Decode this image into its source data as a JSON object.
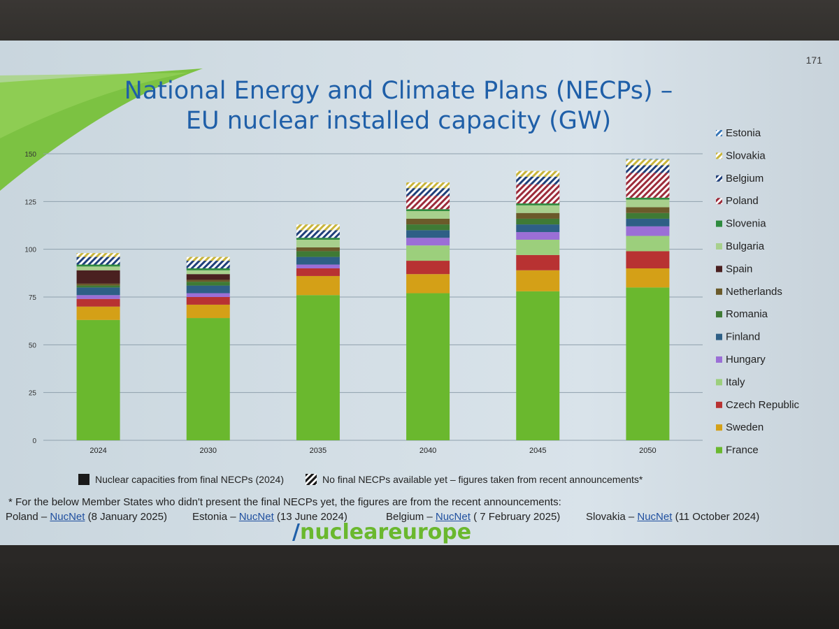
{
  "slide": {
    "number": "171",
    "title_line1": "National Energy and Climate Plans (NECPs) –",
    "title_line2": "EU nuclear installed capacity (GW)",
    "footnote": "* For the below Member States who didn't present the final NECPs yet, the figures are from the recent announcements:",
    "sources": [
      {
        "country": "Poland – ",
        "link": "NucNet",
        "date": " (8 January 2025)"
      },
      {
        "country": "Estonia – ",
        "link": "NucNet",
        "date": " (13 June 2024)"
      },
      {
        "country": "Belgium – ",
        "link": "NucNet",
        "date": " ( 7 February 2025)"
      },
      {
        "country": "Slovakia – ",
        "link": "NucNet",
        "date": " (11 October 2024)"
      }
    ],
    "logo": {
      "mark": "/",
      "text": "nucleareurope"
    }
  },
  "legend_bottom": {
    "solid": "Nuclear capacities from final NECPs (2024)",
    "hatched": "No final NECPs available yet – figures taken from recent announcements*"
  },
  "chart_data": {
    "type": "bar",
    "stacked": true,
    "title": "EU nuclear installed capacity (GW)",
    "categories": [
      "2024",
      "2030",
      "2035",
      "2040",
      "2045",
      "2050"
    ],
    "ylim": [
      0,
      150
    ],
    "yticks": [
      "0",
      "25",
      "50",
      "75",
      "100",
      "125",
      "150"
    ],
    "grid": true,
    "legend_position": "right",
    "series": [
      {
        "name": "France",
        "color": "#6ab82e",
        "hatched": false,
        "values": [
          63,
          64,
          76,
          77,
          78,
          80
        ]
      },
      {
        "name": "Sweden",
        "color": "#d4a017",
        "hatched": false,
        "values": [
          7,
          7,
          10,
          10,
          11,
          10
        ]
      },
      {
        "name": "Czech Republic",
        "color": "#b83232",
        "hatched": false,
        "values": [
          4,
          4,
          4,
          7,
          8,
          9
        ]
      },
      {
        "name": "Italy",
        "color": "#9ccf7c",
        "hatched": false,
        "values": [
          0,
          0,
          0,
          8,
          8,
          8
        ]
      },
      {
        "name": "Hungary",
        "color": "#9b6fd6",
        "hatched": false,
        "values": [
          2,
          2,
          2,
          4,
          4,
          5
        ]
      },
      {
        "name": "Finland",
        "color": "#2e5f86",
        "hatched": false,
        "values": [
          4,
          4,
          4,
          4,
          4,
          4
        ]
      },
      {
        "name": "Romania",
        "color": "#3f7a35",
        "hatched": false,
        "values": [
          1,
          2,
          3,
          3,
          3,
          3
        ]
      },
      {
        "name": "Netherlands",
        "color": "#6b5a2a",
        "hatched": false,
        "values": [
          1,
          1,
          2,
          3,
          3,
          3
        ]
      },
      {
        "name": "Spain",
        "color": "#4a2020",
        "hatched": false,
        "values": [
          7,
          3,
          0,
          0,
          0,
          0
        ]
      },
      {
        "name": "Bulgaria",
        "color": "#a8d08d",
        "hatched": false,
        "values": [
          2,
          2,
          4,
          4,
          4,
          4
        ]
      },
      {
        "name": "Slovenia",
        "color": "#2e8b3e",
        "hatched": false,
        "values": [
          1,
          1,
          1,
          1,
          1,
          1
        ]
      },
      {
        "name": "Poland",
        "color": "#9c2b3a",
        "hatched": true,
        "values": [
          0,
          0,
          0,
          7,
          10,
          13
        ]
      },
      {
        "name": "Belgium",
        "color": "#1f3f7a",
        "hatched": true,
        "values": [
          4,
          4,
          4,
          4,
          4,
          4
        ]
      },
      {
        "name": "Slovakia",
        "color": "#c9b53a",
        "hatched": true,
        "values": [
          2,
          2,
          3,
          3,
          3,
          3
        ]
      },
      {
        "name": "Estonia",
        "color": "#3a78b8",
        "hatched": true,
        "values": [
          0,
          0,
          0,
          0,
          0,
          0.3
        ]
      }
    ]
  }
}
